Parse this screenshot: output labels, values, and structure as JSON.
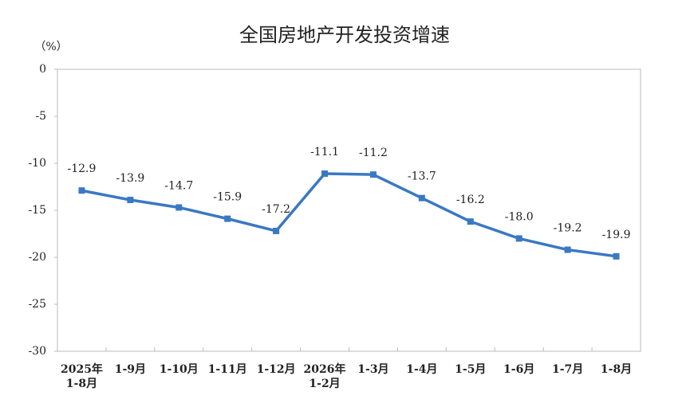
{
  "chart_data": {
    "type": "line",
    "title": "全国房地产开发投资增速",
    "y_label": "（%）",
    "categories": [
      "2025年\n1-8月",
      "1-9月",
      "1-10月",
      "1-11月",
      "1-12月",
      "2026年\n1-2月",
      "1-3月",
      "1-4月",
      "1-5月",
      "1-6月",
      "1-7月",
      "1-8月"
    ],
    "values": [
      -12.9,
      -13.9,
      -14.7,
      -15.9,
      -17.2,
      -11.1,
      -11.2,
      -13.7,
      -16.2,
      -18.0,
      -19.2,
      -19.9
    ],
    "value_labels": [
      "-12.9",
      "-13.9",
      "-14.7",
      "-15.9",
      "-17.2",
      "-11.1",
      "-11.2",
      "-13.7",
      "-16.2",
      "-18.0",
      "-19.2",
      "-19.9"
    ],
    "color": "#3a78c3",
    "ylim": [
      -30,
      0
    ],
    "yticks": [
      0,
      -5,
      -10,
      -15,
      -20,
      -25,
      -30
    ],
    "grid": false
  }
}
